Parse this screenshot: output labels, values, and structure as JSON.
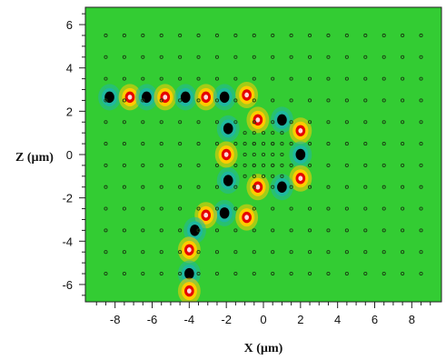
{
  "chart_data": {
    "type": "heatmap",
    "title": "",
    "xlabel": "X (µm)",
    "ylabel": "Z (µm)",
    "xlim": [
      -9.6,
      9.6
    ],
    "ylim": [
      -6.8,
      6.8
    ],
    "xticks": [
      -8,
      -6,
      -4,
      -2,
      0,
      2,
      4,
      6,
      8
    ],
    "yticks": [
      6,
      4,
      2,
      0,
      -2,
      -4,
      -6
    ],
    "xtick_labels": [
      "-8",
      "-6",
      "-4",
      "-2",
      "0",
      "2",
      "4",
      "6",
      "8"
    ],
    "ytick_labels": [
      "6",
      "4",
      "2",
      "0",
      "-2",
      "-4",
      "-6"
    ],
    "grid": false,
    "lattice": {
      "x_range": [
        -8.5,
        8.5
      ],
      "y_range": [
        -5.5,
        5.5
      ],
      "pitch": 0.5
    },
    "inner_rods": {
      "x_range": [
        -1.0,
        1.0
      ],
      "y_range": [
        -1.0,
        1.0
      ],
      "pitch": 0.5
    },
    "field_maxima": [
      {
        "x": -8.3,
        "y": 2.65,
        "sign": -1
      },
      {
        "x": -7.2,
        "y": 2.65,
        "sign": 1
      },
      {
        "x": -6.3,
        "y": 2.65,
        "sign": -1
      },
      {
        "x": -5.3,
        "y": 2.65,
        "sign": 1
      },
      {
        "x": -4.2,
        "y": 2.65,
        "sign": -1
      },
      {
        "x": -3.1,
        "y": 2.65,
        "sign": 1
      },
      {
        "x": -2.1,
        "y": 2.65,
        "sign": -1
      },
      {
        "x": -0.9,
        "y": 2.75,
        "sign": 1
      },
      {
        "x": -1.9,
        "y": 1.2,
        "sign": -1
      },
      {
        "x": -2.0,
        "y": 0.0,
        "sign": 1
      },
      {
        "x": -1.9,
        "y": -1.2,
        "sign": -1
      },
      {
        "x": -0.3,
        "y": 1.6,
        "sign": 1
      },
      {
        "x": 1.0,
        "y": 1.6,
        "sign": -1
      },
      {
        "x": 2.0,
        "y": 1.1,
        "sign": 1
      },
      {
        "x": 2.0,
        "y": 0.0,
        "sign": -1
      },
      {
        "x": 2.0,
        "y": -1.1,
        "sign": 1
      },
      {
        "x": 1.0,
        "y": -1.5,
        "sign": -1
      },
      {
        "x": -0.3,
        "y": -1.5,
        "sign": 1
      },
      {
        "x": -0.9,
        "y": -2.9,
        "sign": 1
      },
      {
        "x": -2.1,
        "y": -2.7,
        "sign": -1
      },
      {
        "x": -3.1,
        "y": -2.8,
        "sign": 1
      },
      {
        "x": -3.7,
        "y": -3.5,
        "sign": -1
      },
      {
        "x": -4.0,
        "y": -4.4,
        "sign": 1
      },
      {
        "x": -4.0,
        "y": -5.5,
        "sign": -1
      },
      {
        "x": -4.0,
        "y": -6.3,
        "sign": 1
      }
    ],
    "colors": {
      "background_field": "#33cc33",
      "positive_peak": "#e60000",
      "positive_mid": "#ffcc00",
      "negative_peak": "#000000",
      "negative_mid": "#1fb8a0",
      "rod_outline": "#1a3d12"
    }
  }
}
